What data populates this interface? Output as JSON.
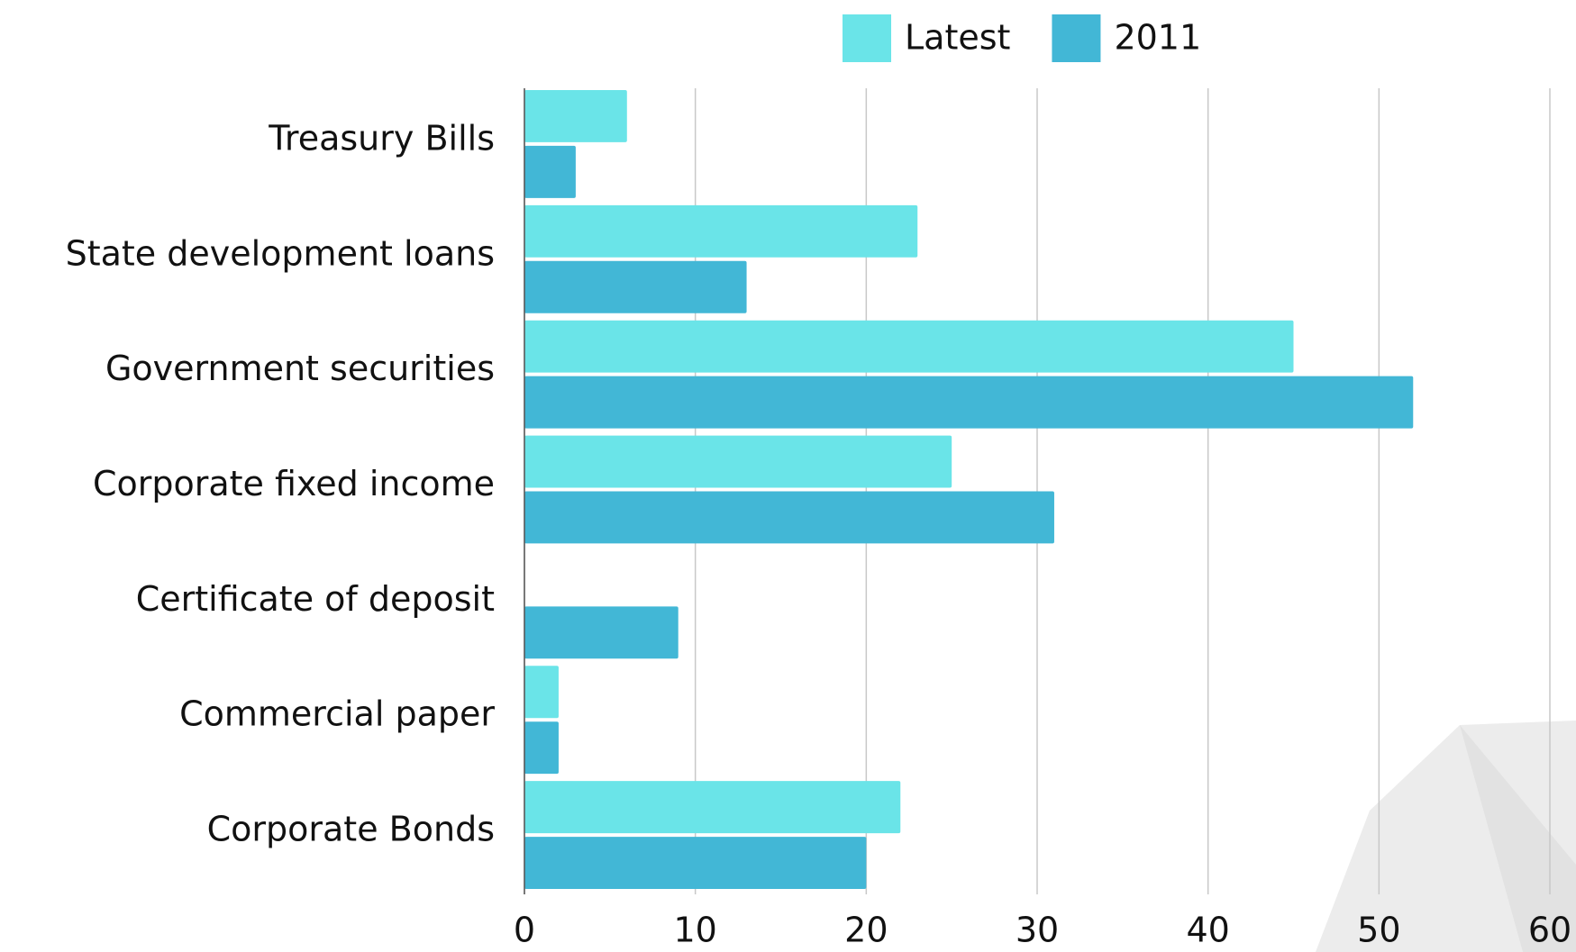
{
  "chart_data": {
    "type": "hbar",
    "categories": [
      "Treasury Bills",
      "State development loans",
      "Government securities",
      "Corporate fixed income",
      "Certificate of deposit",
      "Commercial paper",
      "Corporate Bonds"
    ],
    "series": [
      {
        "name": "Latest",
        "color": "#6ae4e8",
        "values": [
          6,
          23,
          45,
          25,
          0,
          2,
          22
        ]
      },
      {
        "name": "2011",
        "color": "#42b7d6",
        "values": [
          3,
          13,
          52,
          31,
          9,
          2,
          20
        ]
      }
    ],
    "xlim": [
      0,
      60
    ],
    "xticks": [
      0,
      10,
      20,
      30,
      40,
      50,
      60
    ],
    "grid": true,
    "legend": "top"
  }
}
